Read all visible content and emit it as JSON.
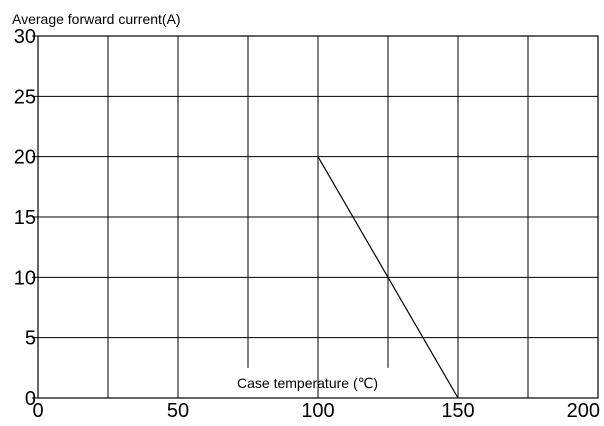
{
  "chart_data": {
    "type": "line",
    "title": "",
    "xlabel": "Case temperature (℃)",
    "ylabel": "Average forward current(A)",
    "xlim": [
      0,
      200
    ],
    "ylim": [
      0,
      30
    ],
    "x_ticks": [
      0,
      50,
      100,
      150,
      200
    ],
    "y_ticks": [
      0,
      5,
      10,
      15,
      20,
      25,
      30
    ],
    "x_tick_labels": [
      "0",
      "50",
      "100",
      "150",
      "200"
    ],
    "y_tick_labels": [
      "0",
      "5",
      "10",
      "15",
      "20",
      "25",
      "30"
    ],
    "grid": true,
    "legend": "none",
    "series": [
      {
        "x": [
          100,
          150
        ],
        "y": [
          20,
          0
        ]
      }
    ],
    "colors": {
      "line": "#000000",
      "grid": "#000000",
      "background": "#ffffff"
    }
  }
}
